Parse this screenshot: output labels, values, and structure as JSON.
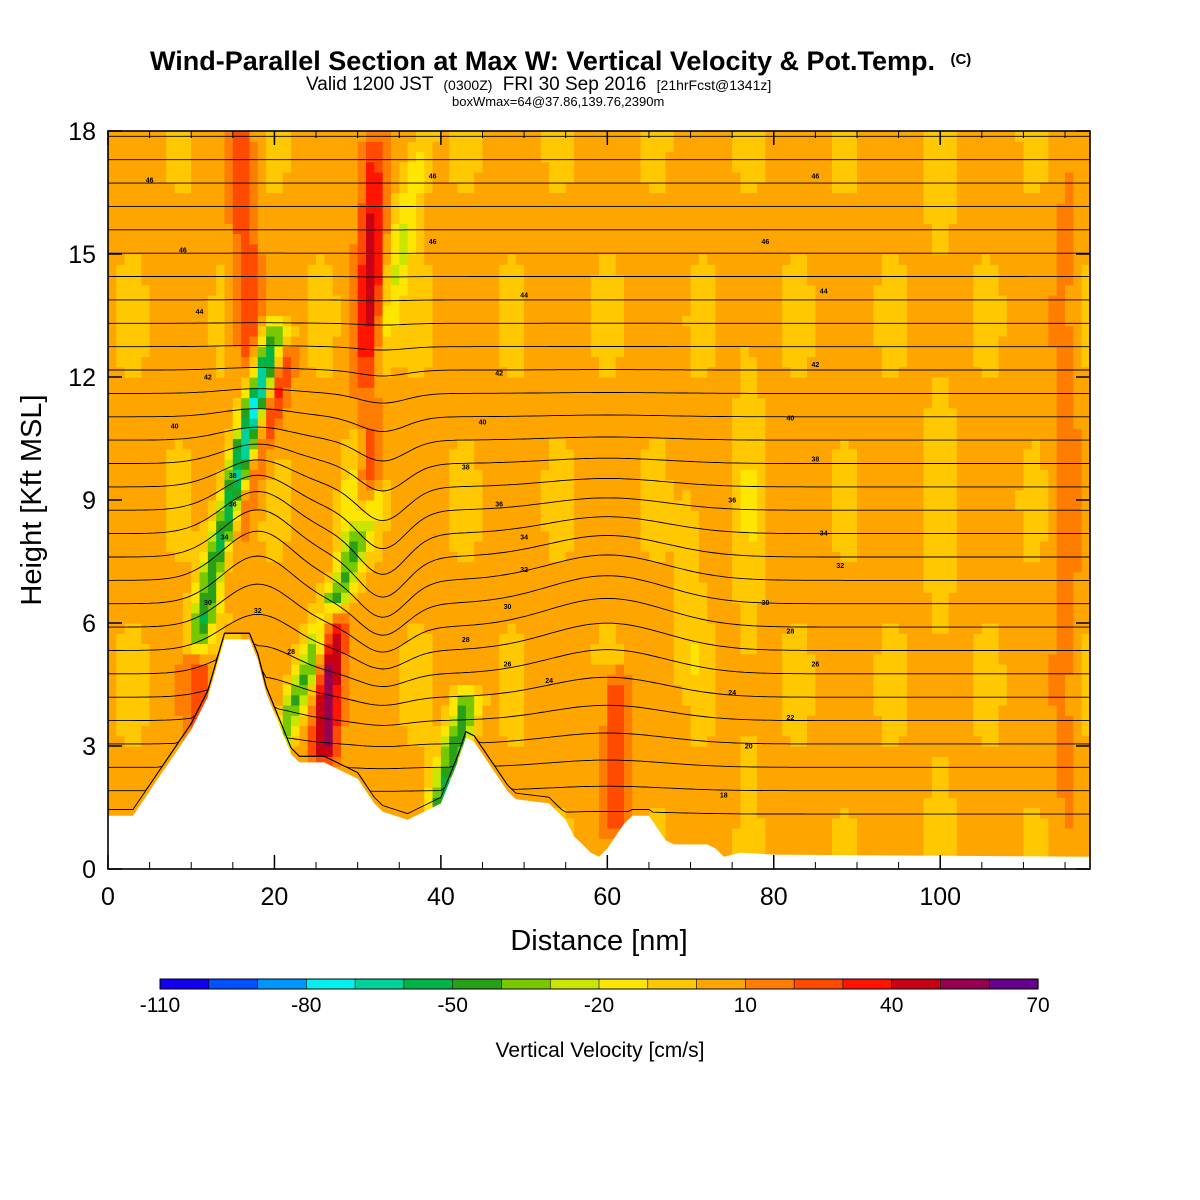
{
  "header": {
    "title_main": "Wind-Parallel Section at Max W: Vertical Velocity & Pot.Temp.",
    "title_mark": "(C)",
    "valid_a": "Valid 1200 JST",
    "valid_b": "(0300Z)",
    "valid_c": "FRI 30 Sep 2016",
    "valid_d": "[21hrFcst@1341z]",
    "box_info": "boxWmax=64@37.86,139.76,2390m"
  },
  "chart_data": {
    "type": "heatmap",
    "xlabel": "Distance [nm]",
    "ylabel": "Height [Kft MSL]",
    "xlim": [
      0,
      118
    ],
    "ylim": [
      0,
      18
    ],
    "xticks": [
      0,
      20,
      40,
      60,
      80,
      100
    ],
    "yticks": [
      0,
      3,
      6,
      9,
      12,
      15,
      18
    ],
    "colorbar": {
      "label": "Vertical Velocity [cm/s]",
      "min": -110,
      "max": 70,
      "step": 10,
      "ticks": [
        -110,
        -80,
        -50,
        -20,
        10,
        40,
        70
      ],
      "colors": [
        "#1400f0",
        "#0050ff",
        "#0096ff",
        "#00f0f0",
        "#00d29b",
        "#00b446",
        "#28a018",
        "#78c800",
        "#c8e600",
        "#ffe600",
        "#ffc800",
        "#ffa500",
        "#ff7d00",
        "#ff4b00",
        "#ff1400",
        "#c80014",
        "#960050",
        "#64008c"
      ]
    },
    "terrain": [
      [
        0,
        1.3
      ],
      [
        3,
        1.3
      ],
      [
        4,
        1.6
      ],
      [
        5,
        1.9
      ],
      [
        6,
        2.2
      ],
      [
        7,
        2.5
      ],
      [
        8,
        2.8
      ],
      [
        9,
        3.1
      ],
      [
        10,
        3.4
      ],
      [
        11,
        3.8
      ],
      [
        12,
        4.2
      ],
      [
        13,
        4.9
      ],
      [
        14,
        5.6
      ],
      [
        17,
        5.6
      ],
      [
        18,
        5.1
      ],
      [
        19,
        4.3
      ],
      [
        20,
        3.8
      ],
      [
        21,
        3.3
      ],
      [
        22,
        2.8
      ],
      [
        23,
        2.6
      ],
      [
        26,
        2.6
      ],
      [
        28,
        2.4
      ],
      [
        30,
        2.2
      ],
      [
        31,
        1.9
      ],
      [
        32,
        1.6
      ],
      [
        33,
        1.4
      ],
      [
        36,
        1.2
      ],
      [
        38,
        1.4
      ],
      [
        40,
        1.6
      ],
      [
        41,
        2.1
      ],
      [
        42,
        2.6
      ],
      [
        43,
        3.2
      ],
      [
        44,
        3.1
      ],
      [
        45,
        2.8
      ],
      [
        46,
        2.5
      ],
      [
        47,
        2.2
      ],
      [
        48,
        1.9
      ],
      [
        49,
        1.7
      ],
      [
        53,
        1.6
      ],
      [
        55,
        1.2
      ],
      [
        56,
        0.8
      ],
      [
        57,
        0.6
      ],
      [
        58,
        0.4
      ],
      [
        59,
        0.3
      ],
      [
        60,
        0.5
      ],
      [
        61,
        0.8
      ],
      [
        62,
        1.1
      ],
      [
        63,
        1.3
      ],
      [
        65,
        1.3
      ],
      [
        66,
        1.0
      ],
      [
        67,
        0.7
      ],
      [
        68,
        0.6
      ],
      [
        72,
        0.6
      ],
      [
        73,
        0.5
      ],
      [
        74,
        0.3
      ],
      [
        76,
        0.4
      ],
      [
        80,
        0.35
      ],
      [
        118,
        0.3
      ]
    ],
    "cores": [
      {
        "x0": 11,
        "x1": 20,
        "z0": 5.6,
        "z1": 13,
        "w": -100
      },
      {
        "x0": 20,
        "x1": 32,
        "z0": 2.8,
        "z1": 9,
        "w": -45
      },
      {
        "x0": 28,
        "x1": 38,
        "z0": 8,
        "z1": 18,
        "w": -25
      },
      {
        "x0": 40,
        "x1": 43,
        "z0": 1.6,
        "z1": 4,
        "w": -55
      },
      {
        "x0": 12,
        "x1": 21,
        "z0": 6.2,
        "z1": 12.5,
        "w": 55
      },
      {
        "x0": 26,
        "x1": 27,
        "z0": 3,
        "z1": 6,
        "w": 60
      },
      {
        "x0": 31,
        "x1": 32,
        "z0": 8.5,
        "z1": 18,
        "w": 40
      },
      {
        "x0": 17,
        "x1": 16,
        "z0": 12,
        "z1": 18,
        "w": 25
      },
      {
        "x0": 11,
        "x1": 11,
        "z0": 3.5,
        "z1": 5.5,
        "w": 22
      },
      {
        "x0": 61,
        "x1": 61,
        "z0": 1.3,
        "z1": 4.5,
        "w": 28
      },
      {
        "x0": 70,
        "x1": 70,
        "z0": 4.5,
        "z1": 9,
        "w": -10
      },
      {
        "x0": 77,
        "x1": 77,
        "z0": 2,
        "z1": 15,
        "w": -9
      },
      {
        "x0": 100,
        "x1": 100,
        "z0": 1,
        "z1": 18,
        "w": -7
      },
      {
        "x0": 115,
        "x1": 115,
        "z0": 1,
        "z1": 17,
        "w": 12
      }
    ],
    "theta_labels": [
      {
        "x": 5,
        "z": 16.8,
        "text": "46"
      },
      {
        "x": 39,
        "z": 16.9,
        "text": "46"
      },
      {
        "x": 85,
        "z": 16.9,
        "text": "46"
      },
      {
        "x": 9,
        "z": 15.1,
        "text": "46"
      },
      {
        "x": 39,
        "z": 15.3,
        "text": "46"
      },
      {
        "x": 79,
        "z": 15.3,
        "text": "46"
      },
      {
        "x": 11,
        "z": 13.6,
        "text": "44"
      },
      {
        "x": 50,
        "z": 14,
        "text": "44"
      },
      {
        "x": 86,
        "z": 14.1,
        "text": "44"
      },
      {
        "x": 12,
        "z": 12,
        "text": "42"
      },
      {
        "x": 47,
        "z": 12.1,
        "text": "42"
      },
      {
        "x": 85,
        "z": 12.3,
        "text": "42"
      },
      {
        "x": 8,
        "z": 10.8,
        "text": "40"
      },
      {
        "x": 45,
        "z": 10.9,
        "text": "40"
      },
      {
        "x": 82,
        "z": 11,
        "text": "40"
      },
      {
        "x": 15,
        "z": 9.6,
        "text": "38"
      },
      {
        "x": 43,
        "z": 9.8,
        "text": "38"
      },
      {
        "x": 85,
        "z": 10,
        "text": "38"
      },
      {
        "x": 15,
        "z": 8.9,
        "text": "36"
      },
      {
        "x": 47,
        "z": 8.9,
        "text": "36"
      },
      {
        "x": 75,
        "z": 9,
        "text": "36"
      },
      {
        "x": 14,
        "z": 8.1,
        "text": "34"
      },
      {
        "x": 50,
        "z": 8.1,
        "text": "34"
      },
      {
        "x": 86,
        "z": 8.2,
        "text": "34"
      },
      {
        "x": 50,
        "z": 7.3,
        "text": "32"
      },
      {
        "x": 88,
        "z": 7.4,
        "text": "32"
      },
      {
        "x": 18,
        "z": 6.3,
        "text": "32"
      },
      {
        "x": 12,
        "z": 6.5,
        "text": "30"
      },
      {
        "x": 48,
        "z": 6.4,
        "text": "30"
      },
      {
        "x": 79,
        "z": 6.5,
        "text": "30"
      },
      {
        "x": 43,
        "z": 5.6,
        "text": "28"
      },
      {
        "x": 82,
        "z": 5.8,
        "text": "28"
      },
      {
        "x": 22,
        "z": 5.3,
        "text": "28"
      },
      {
        "x": 48,
        "z": 5,
        "text": "26"
      },
      {
        "x": 85,
        "z": 5,
        "text": "26"
      },
      {
        "x": 53,
        "z": 4.6,
        "text": "24"
      },
      {
        "x": 75,
        "z": 4.3,
        "text": "24"
      },
      {
        "x": 82,
        "z": 3.7,
        "text": "22"
      },
      {
        "x": 77,
        "z": 3,
        "text": "20"
      },
      {
        "x": 74,
        "z": 1.8,
        "text": "18"
      }
    ]
  }
}
